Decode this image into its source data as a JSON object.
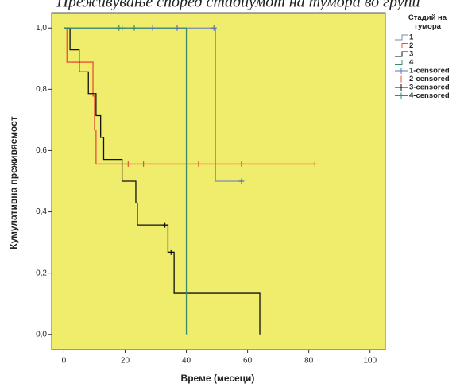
{
  "chart_data": {
    "type": "km",
    "title": "Преживување според стадиумот на тумора во групи",
    "x_label": "Време (месеци)",
    "y_label": "Кумулативна преживяемост",
    "legend_title": "Стадий на тумора",
    "background": "#f0ec6c",
    "xlim": [
      -4,
      105
    ],
    "ylim": [
      -0.05,
      1.05
    ],
    "xticks": [
      0,
      20,
      40,
      60,
      80,
      100
    ],
    "yticks": [
      {
        "value": 0,
        "label": "0,0"
      },
      {
        "value": 0.2,
        "label": "0,2"
      },
      {
        "value": 0.4,
        "label": "0,4"
      },
      {
        "value": 0.6,
        "label": "0,6"
      },
      {
        "value": 0.8,
        "label": "0,8"
      },
      {
        "value": 1,
        "label": "1,0"
      }
    ],
    "series": [
      {
        "name": "1",
        "color": "#7a8bb0",
        "kind": "step",
        "x": [
          0,
          49.5,
          58
        ],
        "values": [
          1,
          0.5,
          0.5
        ]
      },
      {
        "name": "2",
        "color": "#e8513c",
        "kind": "step",
        "x": [
          0,
          1,
          9.5,
          10,
          10.5,
          82
        ],
        "values": [
          1,
          0.889,
          0.778,
          0.667,
          0.556,
          0.556
        ]
      },
      {
        "name": "3",
        "color": "#111111",
        "kind": "step",
        "x": [
          0,
          2,
          5,
          8,
          10.5,
          12,
          13,
          19,
          23.5,
          24,
          34,
          36,
          64
        ],
        "values": [
          1,
          0.929,
          0.857,
          0.786,
          0.714,
          0.643,
          0.571,
          0.5,
          0.429,
          0.357,
          0.268,
          0.134,
          0
        ]
      },
      {
        "name": "4",
        "color": "#3c8c6c",
        "kind": "step",
        "x": [
          0,
          40
        ],
        "values": [
          1,
          0
        ]
      },
      {
        "name": "1-censored",
        "color": "#5a74b8",
        "kind": "censor",
        "x": [
          29,
          37,
          49,
          58
        ],
        "values": [
          1,
          1,
          1,
          0.5
        ]
      },
      {
        "name": "2-censored",
        "color": "#e8513c",
        "kind": "censor",
        "x": [
          21,
          26,
          44,
          58,
          82
        ],
        "values": [
          0.556,
          0.556,
          0.556,
          0.556,
          0.556
        ]
      },
      {
        "name": "3-censored",
        "color": "#111111",
        "kind": "censor",
        "x": [
          33,
          35
        ],
        "values": [
          0.357,
          0.268
        ]
      },
      {
        "name": "4-censored",
        "color": "#3c8c6c",
        "kind": "censor",
        "x": [
          18,
          19,
          23
        ],
        "values": [
          1,
          1,
          1
        ]
      }
    ]
  }
}
